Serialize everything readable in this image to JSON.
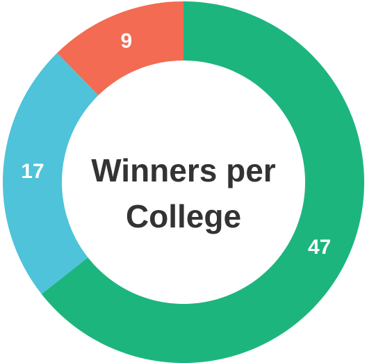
{
  "chart_data": {
    "type": "donut",
    "title": "Winners per College",
    "values": [
      47,
      17,
      9
    ],
    "colors": [
      "#1db57e",
      "#4ec3d9",
      "#f26b52"
    ]
  }
}
